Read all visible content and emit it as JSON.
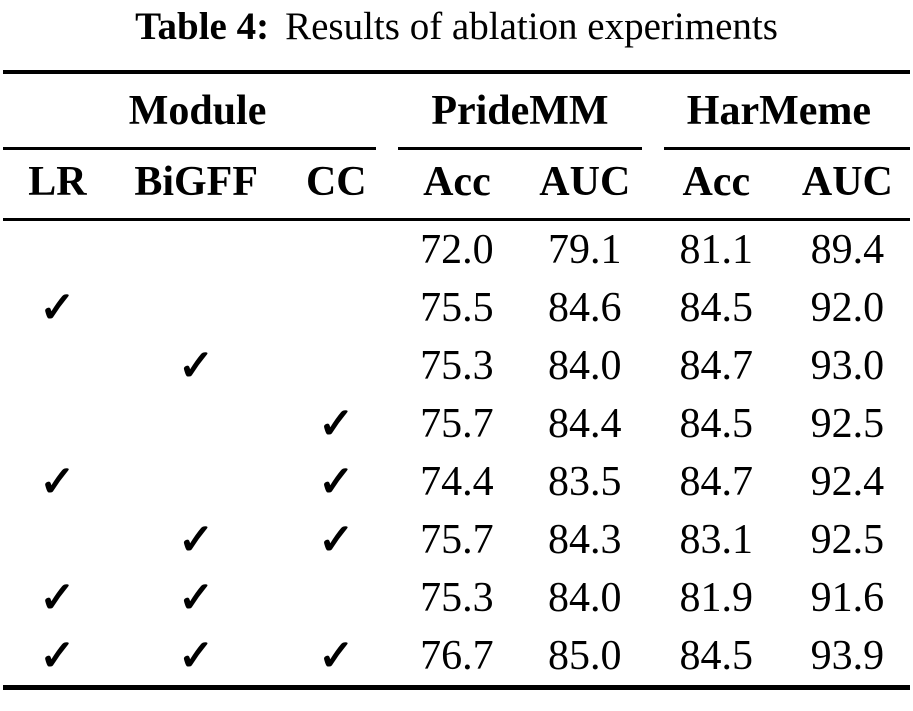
{
  "caption": {
    "label": "Table 4:",
    "text": "Results of ablation experiments"
  },
  "table": {
    "groups": {
      "module": "Module",
      "pridemm": "PrideMM",
      "harmeme": "HarMeme"
    },
    "columns": [
      "LR",
      "BiGFF",
      "CC",
      "Acc",
      "AUC",
      "Acc",
      "AUC"
    ],
    "checkmark_glyph": "✓",
    "rows": [
      {
        "lr": "",
        "bigff": "",
        "cc": "",
        "pridemm_acc": "72.0",
        "pridemm_auc": "79.1",
        "harmeme_acc": "81.1",
        "harmeme_auc": "89.4"
      },
      {
        "lr": "✓",
        "bigff": "",
        "cc": "",
        "pridemm_acc": "75.5",
        "pridemm_auc": "84.6",
        "harmeme_acc": "84.5",
        "harmeme_auc": "92.0"
      },
      {
        "lr": "",
        "bigff": "✓",
        "cc": "",
        "pridemm_acc": "75.3",
        "pridemm_auc": "84.0",
        "harmeme_acc": "84.7",
        "harmeme_auc": "93.0"
      },
      {
        "lr": "",
        "bigff": "",
        "cc": "✓",
        "pridemm_acc": "75.7",
        "pridemm_auc": "84.4",
        "harmeme_acc": "84.5",
        "harmeme_auc": "92.5"
      },
      {
        "lr": "✓",
        "bigff": "",
        "cc": "✓",
        "pridemm_acc": "74.4",
        "pridemm_auc": "83.5",
        "harmeme_acc": "84.7",
        "harmeme_auc": "92.4"
      },
      {
        "lr": "",
        "bigff": "✓",
        "cc": "✓",
        "pridemm_acc": "75.7",
        "pridemm_auc": "84.3",
        "harmeme_acc": "83.1",
        "harmeme_auc": "92.5"
      },
      {
        "lr": "✓",
        "bigff": "✓",
        "cc": "",
        "pridemm_acc": "75.3",
        "pridemm_auc": "84.0",
        "harmeme_acc": "81.9",
        "harmeme_auc": "91.6"
      },
      {
        "lr": "✓",
        "bigff": "✓",
        "cc": "✓",
        "pridemm_acc": "76.7",
        "pridemm_auc": "85.0",
        "harmeme_acc": "84.5",
        "harmeme_auc": "93.9"
      }
    ]
  }
}
